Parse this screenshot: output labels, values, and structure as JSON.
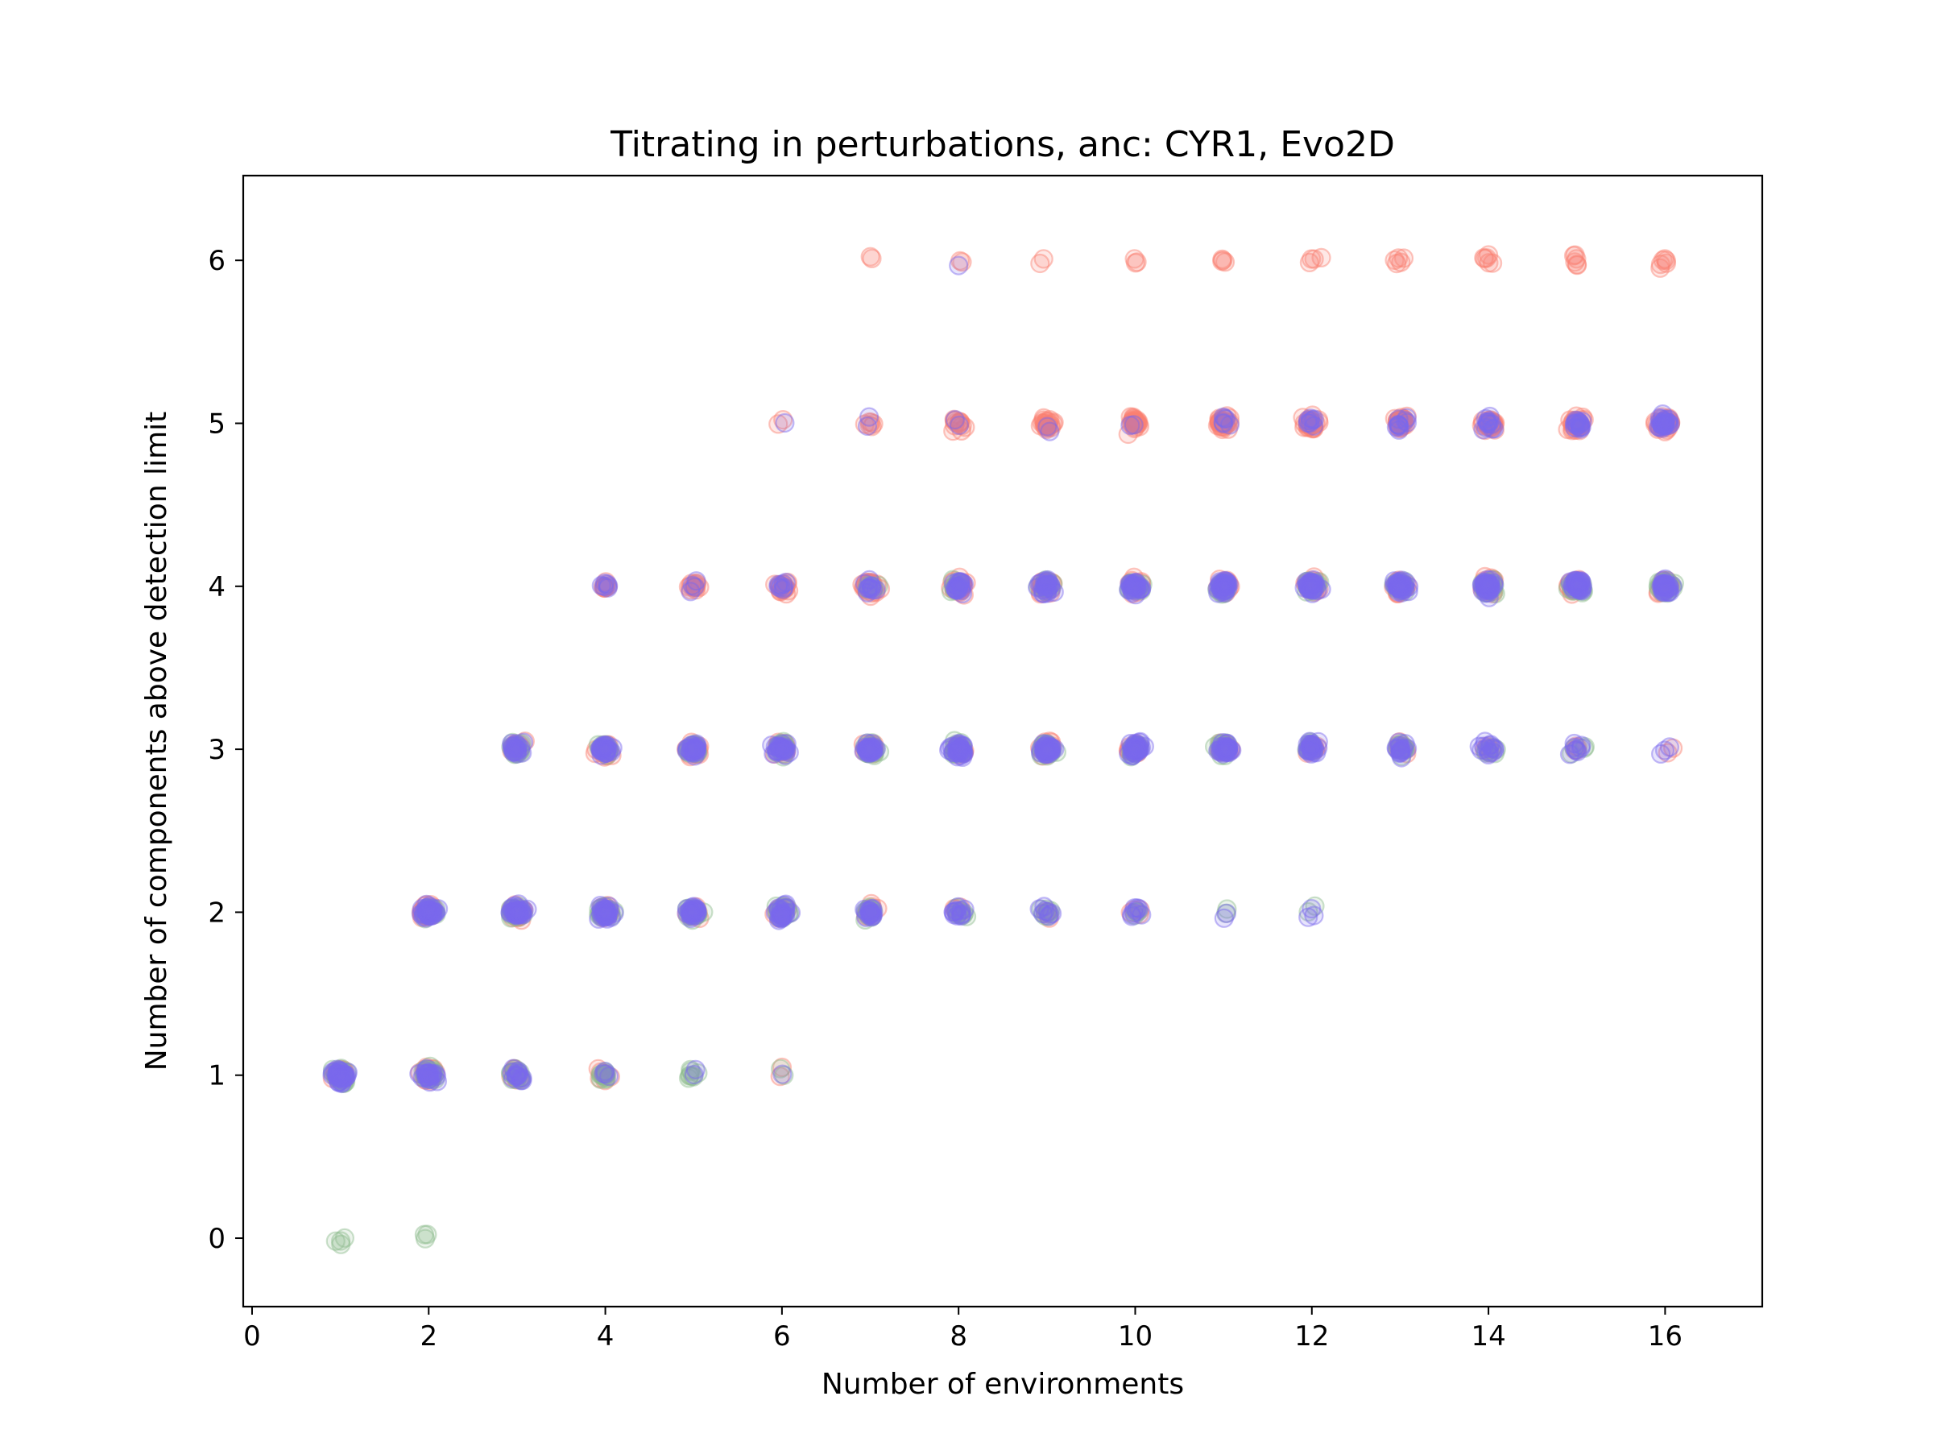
{
  "chart_data": {
    "type": "scatter",
    "title": "Titrating in perturbations, anc: CYR1, Evo2D",
    "xlabel": "Number of environments",
    "ylabel": "Number of components above detection limit",
    "xlim": [
      -0.1,
      17.1
    ],
    "ylim": [
      -0.42,
      6.52
    ],
    "xticks": [
      "0",
      "2",
      "4",
      "6",
      "8",
      "10",
      "12",
      "14",
      "16"
    ],
    "yticks": [
      "0",
      "1",
      "2",
      "3",
      "4",
      "5",
      "6"
    ],
    "grid": false,
    "legend": "none",
    "marker": "hollow circle, semi-transparent, jittered",
    "jitter_x": 0.3,
    "jitter_y": 0.12,
    "series": [
      {
        "color": "#fa8072",
        "counts": [
          {
            "x": 1,
            "y": 1,
            "n": 40
          },
          {
            "x": 2,
            "y": 1,
            "n": 30
          },
          {
            "x": 2,
            "y": 2,
            "n": 40
          },
          {
            "x": 3,
            "y": 1,
            "n": 12
          },
          {
            "x": 3,
            "y": 2,
            "n": 30
          },
          {
            "x": 3,
            "y": 3,
            "n": 20
          },
          {
            "x": 4,
            "y": 1,
            "n": 8
          },
          {
            "x": 4,
            "y": 2,
            "n": 20
          },
          {
            "x": 4,
            "y": 3,
            "n": 30
          },
          {
            "x": 4,
            "y": 4,
            "n": 8
          },
          {
            "x": 5,
            "y": 2,
            "n": 18
          },
          {
            "x": 5,
            "y": 3,
            "n": 30
          },
          {
            "x": 5,
            "y": 4,
            "n": 14
          },
          {
            "x": 6,
            "y": 1,
            "n": 2
          },
          {
            "x": 6,
            "y": 2,
            "n": 12
          },
          {
            "x": 6,
            "y": 3,
            "n": 28
          },
          {
            "x": 6,
            "y": 4,
            "n": 20
          },
          {
            "x": 6,
            "y": 5,
            "n": 2
          },
          {
            "x": 7,
            "y": 2,
            "n": 10
          },
          {
            "x": 7,
            "y": 3,
            "n": 20
          },
          {
            "x": 7,
            "y": 4,
            "n": 30
          },
          {
            "x": 7,
            "y": 5,
            "n": 6
          },
          {
            "x": 7,
            "y": 6,
            "n": 2
          },
          {
            "x": 8,
            "y": 2,
            "n": 6
          },
          {
            "x": 8,
            "y": 3,
            "n": 18
          },
          {
            "x": 8,
            "y": 4,
            "n": 30
          },
          {
            "x": 8,
            "y": 5,
            "n": 14
          },
          {
            "x": 8,
            "y": 6,
            "n": 2
          },
          {
            "x": 9,
            "y": 2,
            "n": 4
          },
          {
            "x": 9,
            "y": 3,
            "n": 16
          },
          {
            "x": 9,
            "y": 4,
            "n": 30
          },
          {
            "x": 9,
            "y": 5,
            "n": 22
          },
          {
            "x": 9,
            "y": 6,
            "n": 2
          },
          {
            "x": 10,
            "y": 2,
            "n": 4
          },
          {
            "x": 10,
            "y": 3,
            "n": 14
          },
          {
            "x": 10,
            "y": 4,
            "n": 26
          },
          {
            "x": 10,
            "y": 5,
            "n": 26
          },
          {
            "x": 10,
            "y": 6,
            "n": 3
          },
          {
            "x": 11,
            "y": 3,
            "n": 12
          },
          {
            "x": 11,
            "y": 4,
            "n": 28
          },
          {
            "x": 11,
            "y": 5,
            "n": 30
          },
          {
            "x": 11,
            "y": 6,
            "n": 4
          },
          {
            "x": 12,
            "y": 3,
            "n": 10
          },
          {
            "x": 12,
            "y": 4,
            "n": 26
          },
          {
            "x": 12,
            "y": 5,
            "n": 30
          },
          {
            "x": 12,
            "y": 6,
            "n": 4
          },
          {
            "x": 13,
            "y": 3,
            "n": 8
          },
          {
            "x": 13,
            "y": 4,
            "n": 26
          },
          {
            "x": 13,
            "y": 5,
            "n": 32
          },
          {
            "x": 13,
            "y": 6,
            "n": 5
          },
          {
            "x": 14,
            "y": 3,
            "n": 6
          },
          {
            "x": 14,
            "y": 4,
            "n": 28
          },
          {
            "x": 14,
            "y": 5,
            "n": 32
          },
          {
            "x": 14,
            "y": 6,
            "n": 6
          },
          {
            "x": 15,
            "y": 3,
            "n": 4
          },
          {
            "x": 15,
            "y": 4,
            "n": 26
          },
          {
            "x": 15,
            "y": 5,
            "n": 34
          },
          {
            "x": 15,
            "y": 6,
            "n": 6
          },
          {
            "x": 16,
            "y": 3,
            "n": 2
          },
          {
            "x": 16,
            "y": 4,
            "n": 24
          },
          {
            "x": 16,
            "y": 5,
            "n": 36
          },
          {
            "x": 16,
            "y": 6,
            "n": 6
          }
        ]
      },
      {
        "color": "#8fbc8f",
        "counts": [
          {
            "x": 1,
            "y": 0,
            "n": 4
          },
          {
            "x": 1,
            "y": 1,
            "n": 40
          },
          {
            "x": 2,
            "y": 0,
            "n": 3
          },
          {
            "x": 2,
            "y": 1,
            "n": 30
          },
          {
            "x": 2,
            "y": 2,
            "n": 30
          },
          {
            "x": 3,
            "y": 1,
            "n": 18
          },
          {
            "x": 3,
            "y": 2,
            "n": 26
          },
          {
            "x": 3,
            "y": 3,
            "n": 18
          },
          {
            "x": 4,
            "y": 1,
            "n": 12
          },
          {
            "x": 4,
            "y": 2,
            "n": 26
          },
          {
            "x": 4,
            "y": 3,
            "n": 16
          },
          {
            "x": 5,
            "y": 1,
            "n": 8
          },
          {
            "x": 5,
            "y": 2,
            "n": 24
          },
          {
            "x": 5,
            "y": 3,
            "n": 20
          },
          {
            "x": 6,
            "y": 1,
            "n": 2
          },
          {
            "x": 6,
            "y": 2,
            "n": 20
          },
          {
            "x": 6,
            "y": 3,
            "n": 24
          },
          {
            "x": 7,
            "y": 2,
            "n": 16
          },
          {
            "x": 7,
            "y": 3,
            "n": 24
          },
          {
            "x": 7,
            "y": 4,
            "n": 6
          },
          {
            "x": 8,
            "y": 2,
            "n": 10
          },
          {
            "x": 8,
            "y": 3,
            "n": 24
          },
          {
            "x": 8,
            "y": 4,
            "n": 8
          },
          {
            "x": 9,
            "y": 2,
            "n": 8
          },
          {
            "x": 9,
            "y": 3,
            "n": 26
          },
          {
            "x": 9,
            "y": 4,
            "n": 10
          },
          {
            "x": 10,
            "y": 2,
            "n": 4
          },
          {
            "x": 10,
            "y": 3,
            "n": 24
          },
          {
            "x": 10,
            "y": 4,
            "n": 16
          },
          {
            "x": 11,
            "y": 2,
            "n": 2
          },
          {
            "x": 11,
            "y": 3,
            "n": 16
          },
          {
            "x": 11,
            "y": 4,
            "n": 22
          },
          {
            "x": 12,
            "y": 2,
            "n": 2
          },
          {
            "x": 12,
            "y": 3,
            "n": 12
          },
          {
            "x": 12,
            "y": 4,
            "n": 26
          },
          {
            "x": 13,
            "y": 3,
            "n": 10
          },
          {
            "x": 13,
            "y": 4,
            "n": 28
          },
          {
            "x": 14,
            "y": 3,
            "n": 6
          },
          {
            "x": 14,
            "y": 4,
            "n": 28
          },
          {
            "x": 15,
            "y": 3,
            "n": 4
          },
          {
            "x": 15,
            "y": 4,
            "n": 30
          },
          {
            "x": 16,
            "y": 4,
            "n": 30
          }
        ]
      },
      {
        "color": "#7b68ee",
        "counts": [
          {
            "x": 1,
            "y": 1,
            "n": 36
          },
          {
            "x": 2,
            "y": 1,
            "n": 24
          },
          {
            "x": 2,
            "y": 2,
            "n": 40
          },
          {
            "x": 3,
            "y": 1,
            "n": 14
          },
          {
            "x": 3,
            "y": 2,
            "n": 34
          },
          {
            "x": 3,
            "y": 3,
            "n": 20
          },
          {
            "x": 4,
            "y": 1,
            "n": 4
          },
          {
            "x": 4,
            "y": 2,
            "n": 34
          },
          {
            "x": 4,
            "y": 3,
            "n": 26
          },
          {
            "x": 4,
            "y": 4,
            "n": 6
          },
          {
            "x": 5,
            "y": 1,
            "n": 2
          },
          {
            "x": 5,
            "y": 2,
            "n": 30
          },
          {
            "x": 5,
            "y": 3,
            "n": 28
          },
          {
            "x": 5,
            "y": 4,
            "n": 4
          },
          {
            "x": 6,
            "y": 1,
            "n": 1
          },
          {
            "x": 6,
            "y": 2,
            "n": 26
          },
          {
            "x": 6,
            "y": 3,
            "n": 28
          },
          {
            "x": 6,
            "y": 4,
            "n": 8
          },
          {
            "x": 6,
            "y": 5,
            "n": 1
          },
          {
            "x": 7,
            "y": 2,
            "n": 18
          },
          {
            "x": 7,
            "y": 3,
            "n": 30
          },
          {
            "x": 7,
            "y": 4,
            "n": 12
          },
          {
            "x": 7,
            "y": 5,
            "n": 2
          },
          {
            "x": 8,
            "y": 2,
            "n": 12
          },
          {
            "x": 8,
            "y": 3,
            "n": 34
          },
          {
            "x": 8,
            "y": 4,
            "n": 20
          },
          {
            "x": 8,
            "y": 5,
            "n": 2
          },
          {
            "x": 8,
            "y": 6,
            "n": 1
          },
          {
            "x": 9,
            "y": 2,
            "n": 8
          },
          {
            "x": 9,
            "y": 3,
            "n": 36
          },
          {
            "x": 9,
            "y": 4,
            "n": 24
          },
          {
            "x": 9,
            "y": 5,
            "n": 2
          },
          {
            "x": 10,
            "y": 2,
            "n": 8
          },
          {
            "x": 10,
            "y": 3,
            "n": 34
          },
          {
            "x": 10,
            "y": 4,
            "n": 30
          },
          {
            "x": 10,
            "y": 5,
            "n": 2
          },
          {
            "x": 11,
            "y": 2,
            "n": 2
          },
          {
            "x": 11,
            "y": 3,
            "n": 30
          },
          {
            "x": 11,
            "y": 4,
            "n": 34
          },
          {
            "x": 11,
            "y": 5,
            "n": 6
          },
          {
            "x": 12,
            "y": 2,
            "n": 3
          },
          {
            "x": 12,
            "y": 3,
            "n": 22
          },
          {
            "x": 12,
            "y": 4,
            "n": 36
          },
          {
            "x": 12,
            "y": 5,
            "n": 8
          },
          {
            "x": 13,
            "y": 3,
            "n": 16
          },
          {
            "x": 13,
            "y": 4,
            "n": 38
          },
          {
            "x": 13,
            "y": 5,
            "n": 10
          },
          {
            "x": 14,
            "y": 3,
            "n": 14
          },
          {
            "x": 14,
            "y": 4,
            "n": 38
          },
          {
            "x": 14,
            "y": 5,
            "n": 12
          },
          {
            "x": 15,
            "y": 3,
            "n": 8
          },
          {
            "x": 15,
            "y": 4,
            "n": 36
          },
          {
            "x": 15,
            "y": 5,
            "n": 16
          },
          {
            "x": 16,
            "y": 3,
            "n": 3
          },
          {
            "x": 16,
            "y": 4,
            "n": 34
          },
          {
            "x": 16,
            "y": 5,
            "n": 26
          }
        ]
      }
    ]
  }
}
